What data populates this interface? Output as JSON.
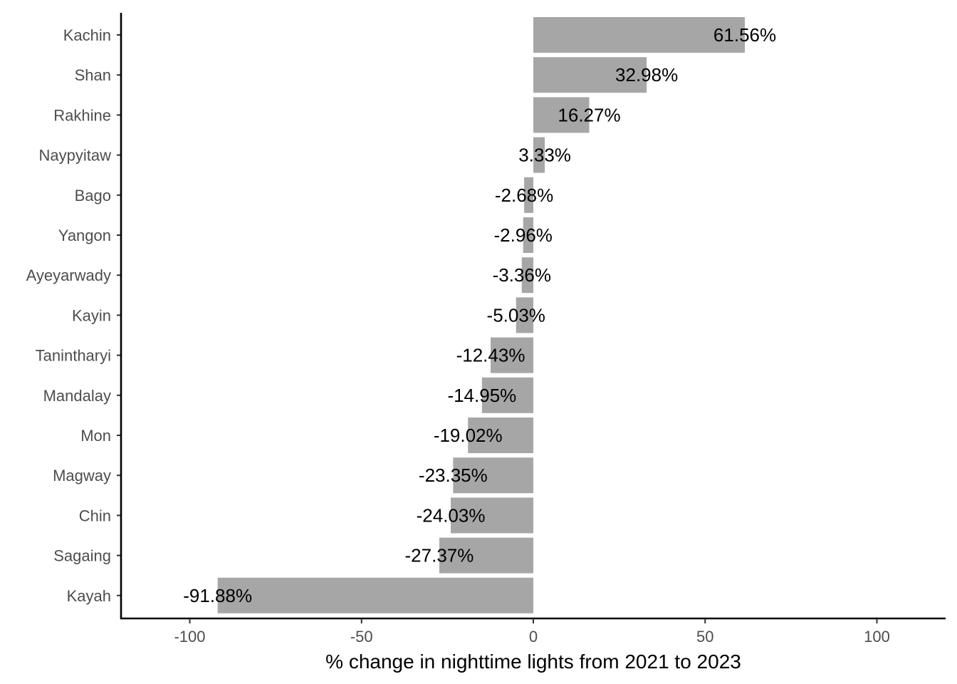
{
  "chart_data": {
    "type": "bar",
    "orientation": "horizontal",
    "categories": [
      "Kachin",
      "Shan",
      "Rakhine",
      "Naypyitaw",
      "Bago",
      "Yangon",
      "Ayeyarwady",
      "Kayin",
      "Tanintharyi",
      "Mandalay",
      "Mon",
      "Magway",
      "Chin",
      "Sagaing",
      "Kayah"
    ],
    "values": [
      61.56,
      32.98,
      16.27,
      3.33,
      -2.68,
      -2.96,
      -3.36,
      -5.03,
      -12.43,
      -14.95,
      -19.02,
      -23.35,
      -24.03,
      -27.37,
      -91.88
    ],
    "data_labels": [
      "61.56%",
      "32.98%",
      "16.27%",
      "3.33%",
      "-2.68%",
      "-2.96%",
      "-3.36%",
      "-5.03%",
      "-12.43%",
      "-14.95%",
      "-19.02%",
      "-23.35%",
      "-24.03%",
      "-27.37%",
      "-91.88%"
    ],
    "title": "",
    "xlabel": "% change in nighttime lights from 2021 to 2023",
    "ylabel": "",
    "xlim": [
      -120,
      120
    ],
    "xticks": [
      -100,
      -50,
      0,
      50,
      100
    ],
    "xtick_labels": [
      "-100",
      "-50",
      "0",
      "50",
      "100"
    ],
    "grid": false,
    "legend": "none",
    "colors": {
      "bar": "#a6a6a6",
      "axis": "#000000",
      "tick_text": "#4d4d4d",
      "label_text": "#000000",
      "background": "#ffffff"
    }
  }
}
